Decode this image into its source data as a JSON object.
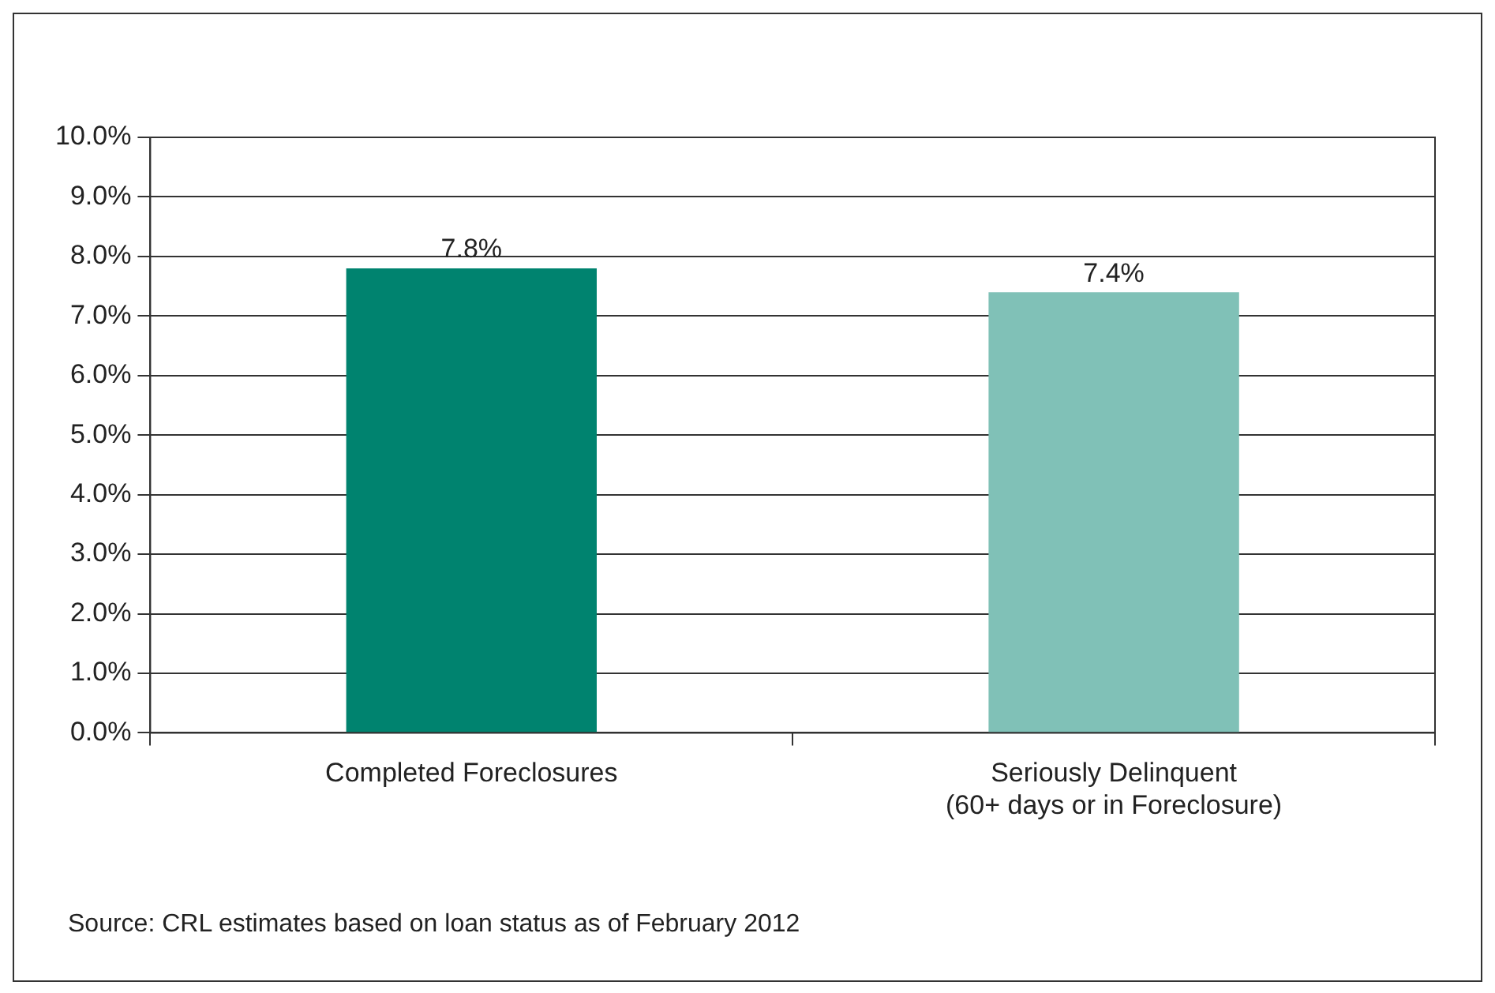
{
  "chart_data": {
    "type": "bar",
    "categories": [
      "Completed Foreclosures",
      "Seriously Delinquent\n(60+ days or in Foreclosure)"
    ],
    "values": [
      7.8,
      7.4
    ],
    "colors": [
      "#00836f",
      "#80c1b7"
    ],
    "value_labels": [
      "7.8%",
      "7.4%"
    ],
    "ylim": [
      0,
      10
    ],
    "yticks": [
      {
        "value": 0,
        "label": "0.0%"
      },
      {
        "value": 1,
        "label": "1.0%"
      },
      {
        "value": 2,
        "label": "2.0%"
      },
      {
        "value": 3,
        "label": "3.0%"
      },
      {
        "value": 4,
        "label": "4.0%"
      },
      {
        "value": 5,
        "label": "5.0%"
      },
      {
        "value": 6,
        "label": "6.0%"
      },
      {
        "value": 7,
        "label": "7.0%"
      },
      {
        "value": 8,
        "label": "8.0%"
      },
      {
        "value": 9,
        "label": "9.0%"
      },
      {
        "value": 10,
        "label": "10.0%"
      }
    ],
    "grid": "y",
    "annotations": [
      "Source: CRL estimates based on loan status as of February 2012"
    ]
  }
}
